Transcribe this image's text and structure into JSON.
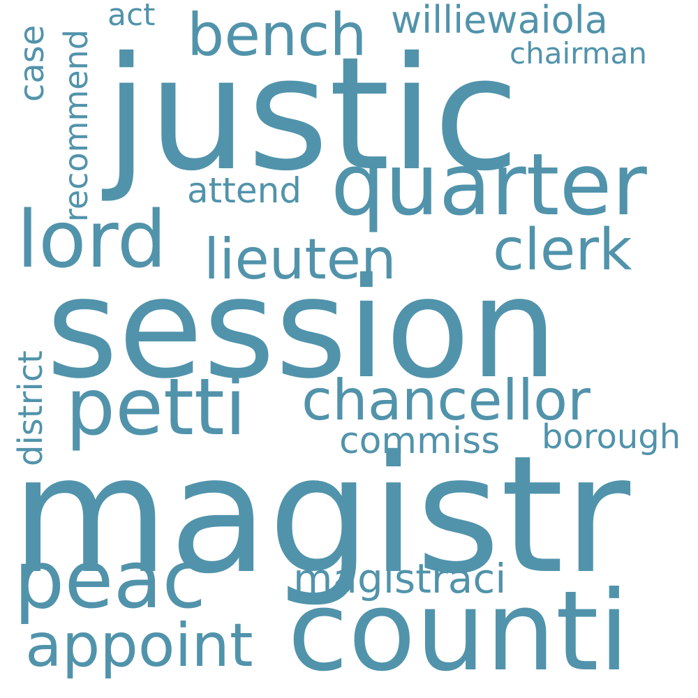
{
  "canvas": {
    "background": "#ffffff"
  },
  "word_color": "#5193ab",
  "words": {
    "magistr": "magistr",
    "session": "session",
    "justic": "justic",
    "counti": "counti",
    "quarter": "quarter",
    "petti": "petti",
    "peac": "peac",
    "lord": "lord",
    "chancellor": "chancellor",
    "appoint": "appoint",
    "bench": "bench",
    "lieuten": "lieuten",
    "clerk": "clerk",
    "magistraci": "magistraci",
    "williewaiola": "williewaiola",
    "recommend": "recommend",
    "district": "district",
    "attend": "attend",
    "commiss": "commiss",
    "borough": "borough",
    "chairman": "chairman",
    "case": "case",
    "act": "act"
  }
}
